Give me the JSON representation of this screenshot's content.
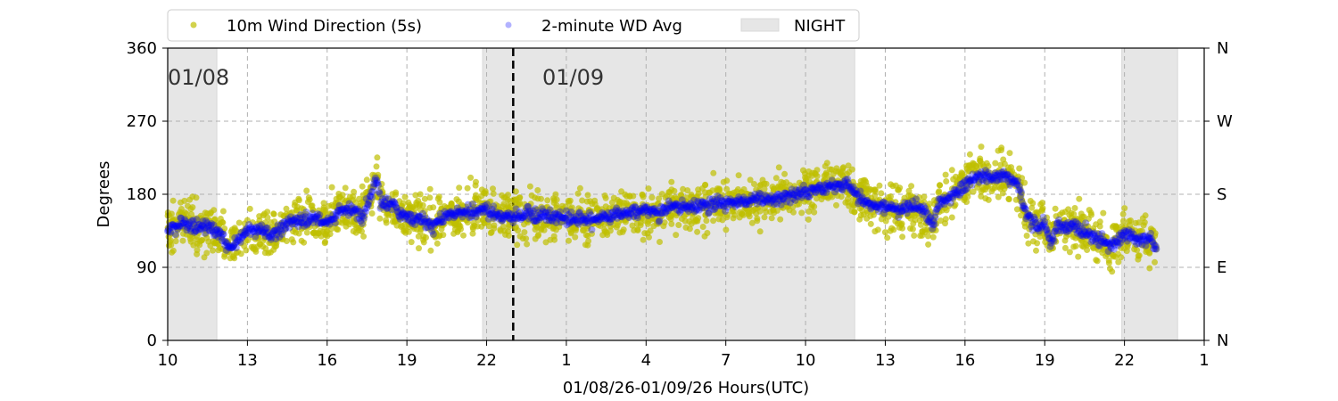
{
  "chart_data": {
    "type": "scatter",
    "xlabel": "01/08/26-01/09/26  Hours(UTC)",
    "ylabel": "Degrees",
    "xlim": [
      10,
      49
    ],
    "ylim": [
      0,
      360
    ],
    "x_ticks": [
      10,
      13,
      16,
      19,
      22,
      25,
      28,
      31,
      34,
      37,
      40,
      43,
      46,
      49
    ],
    "x_tick_labels": [
      "10",
      "13",
      "16",
      "19",
      "22",
      "1",
      "4",
      "7",
      "10",
      "13",
      "16",
      "19",
      "22",
      "1"
    ],
    "y_ticks": [
      0,
      90,
      180,
      270,
      360
    ],
    "y_tick_labels": [
      "0",
      "90",
      "180",
      "270",
      "360"
    ],
    "y2_tick_labels": [
      "N",
      "E",
      "S",
      "W",
      "N"
    ],
    "grid": true,
    "legend_position": "top-center",
    "legend": [
      "10m Wind Direction (5s)",
      "2-minute WD Avg",
      "NIGHT"
    ],
    "date_labels": [
      {
        "x": 10,
        "text": "01/08"
      },
      {
        "x": 24.5,
        "text": "01/09"
      }
    ],
    "day_boundary_x": 23.0,
    "night_spans": [
      [
        10,
        11.85
      ],
      [
        21.85,
        35.85
      ],
      [
        45.9,
        48.0
      ]
    ],
    "series": [
      {
        "name": "10m Wind Direction (5s)",
        "color": "#bfbf00",
        "spread_deg": 25
      },
      {
        "name": "2-minute WD Avg",
        "color": "#0000ff",
        "points": [
          [
            10,
            135
          ],
          [
            10.5,
            145
          ],
          [
            11,
            140
          ],
          [
            11.5,
            140
          ],
          [
            12,
            130
          ],
          [
            12.3,
            115
          ],
          [
            12.7,
            125
          ],
          [
            13,
            135
          ],
          [
            13.5,
            135
          ],
          [
            14,
            130
          ],
          [
            14.5,
            145
          ],
          [
            15,
            150
          ],
          [
            15.5,
            150
          ],
          [
            16,
            145
          ],
          [
            16.5,
            160
          ],
          [
            17,
            160
          ],
          [
            17.3,
            150
          ],
          [
            17.6,
            175
          ],
          [
            17.9,
            200
          ],
          [
            18,
            170
          ],
          [
            18.5,
            165
          ],
          [
            19,
            150
          ],
          [
            19.5,
            150
          ],
          [
            20,
            140
          ],
          [
            20.5,
            155
          ],
          [
            21,
            155
          ],
          [
            21.5,
            160
          ],
          [
            22,
            160
          ],
          [
            22.5,
            155
          ],
          [
            23,
            150
          ],
          [
            23.5,
            155
          ],
          [
            24,
            155
          ],
          [
            25,
            150
          ],
          [
            26,
            148
          ],
          [
            27,
            155
          ],
          [
            28,
            162
          ],
          [
            28.5,
            155
          ],
          [
            29,
            165
          ],
          [
            30,
            165
          ],
          [
            31,
            170
          ],
          [
            32,
            172
          ],
          [
            33,
            175
          ],
          [
            33.5,
            180
          ],
          [
            34,
            185
          ],
          [
            35,
            190
          ],
          [
            35.5,
            195
          ],
          [
            36,
            175
          ],
          [
            36.5,
            165
          ],
          [
            37,
            165
          ],
          [
            37.5,
            160
          ],
          [
            38,
            165
          ],
          [
            38.5,
            160
          ],
          [
            38.8,
            140
          ],
          [
            39,
            170
          ],
          [
            39.5,
            180
          ],
          [
            40,
            190
          ],
          [
            40.5,
            205
          ],
          [
            41,
            200
          ],
          [
            41.5,
            205
          ],
          [
            42,
            190
          ],
          [
            42.3,
            155
          ],
          [
            42.7,
            140
          ],
          [
            43,
            145
          ],
          [
            43.2,
            120
          ],
          [
            43.5,
            140
          ],
          [
            44,
            140
          ],
          [
            44.5,
            135
          ],
          [
            45,
            125
          ],
          [
            45.5,
            115
          ],
          [
            46,
            130
          ],
          [
            46.5,
            125
          ],
          [
            47,
            125
          ],
          [
            47.2,
            110
          ]
        ]
      }
    ],
    "colors": {
      "scatter": "#bfbf00",
      "avg": "#0000ff",
      "night": "#e6e6e6"
    }
  }
}
